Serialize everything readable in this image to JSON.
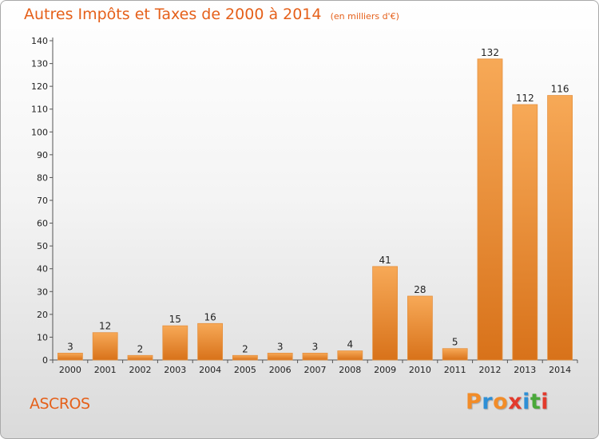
{
  "header": {
    "title": "Autres Impôts et Taxes de 2000 à 2014",
    "unit": "(en milliers d'€)"
  },
  "footer": {
    "commune": "ASCROS",
    "brand_letters": [
      "P",
      "r",
      "o",
      "x",
      "i",
      "t",
      "i"
    ],
    "brand_colors": [
      "#f28c28",
      "#2e8fd6",
      "#f28c28",
      "#e23a2c",
      "#2e8fd6",
      "#4aa83a",
      "#e23a2c"
    ]
  },
  "colors": {
    "bar_light": "#f7a957",
    "bar_dark": "#d8721a",
    "title": "#e5601a",
    "text": "#222222"
  },
  "chart_data": {
    "type": "bar",
    "categories": [
      "2000",
      "2001",
      "2002",
      "2003",
      "2004",
      "2005",
      "2006",
      "2007",
      "2008",
      "2009",
      "2010",
      "2011",
      "2012",
      "2013",
      "2014"
    ],
    "values": [
      3,
      12,
      2,
      15,
      16,
      2,
      3,
      3,
      4,
      41,
      28,
      5,
      132,
      112,
      116
    ],
    "data_labels": [
      "3",
      "12",
      "2",
      "15",
      "16",
      "2",
      "3",
      "3",
      "4",
      "41",
      "28",
      "5",
      "132",
      "112",
      "116"
    ],
    "yticks": [
      0,
      10,
      20,
      30,
      40,
      50,
      60,
      70,
      80,
      90,
      100,
      110,
      120,
      130,
      140
    ],
    "ylim": [
      0,
      140
    ],
    "grid": false,
    "legend": "none"
  }
}
